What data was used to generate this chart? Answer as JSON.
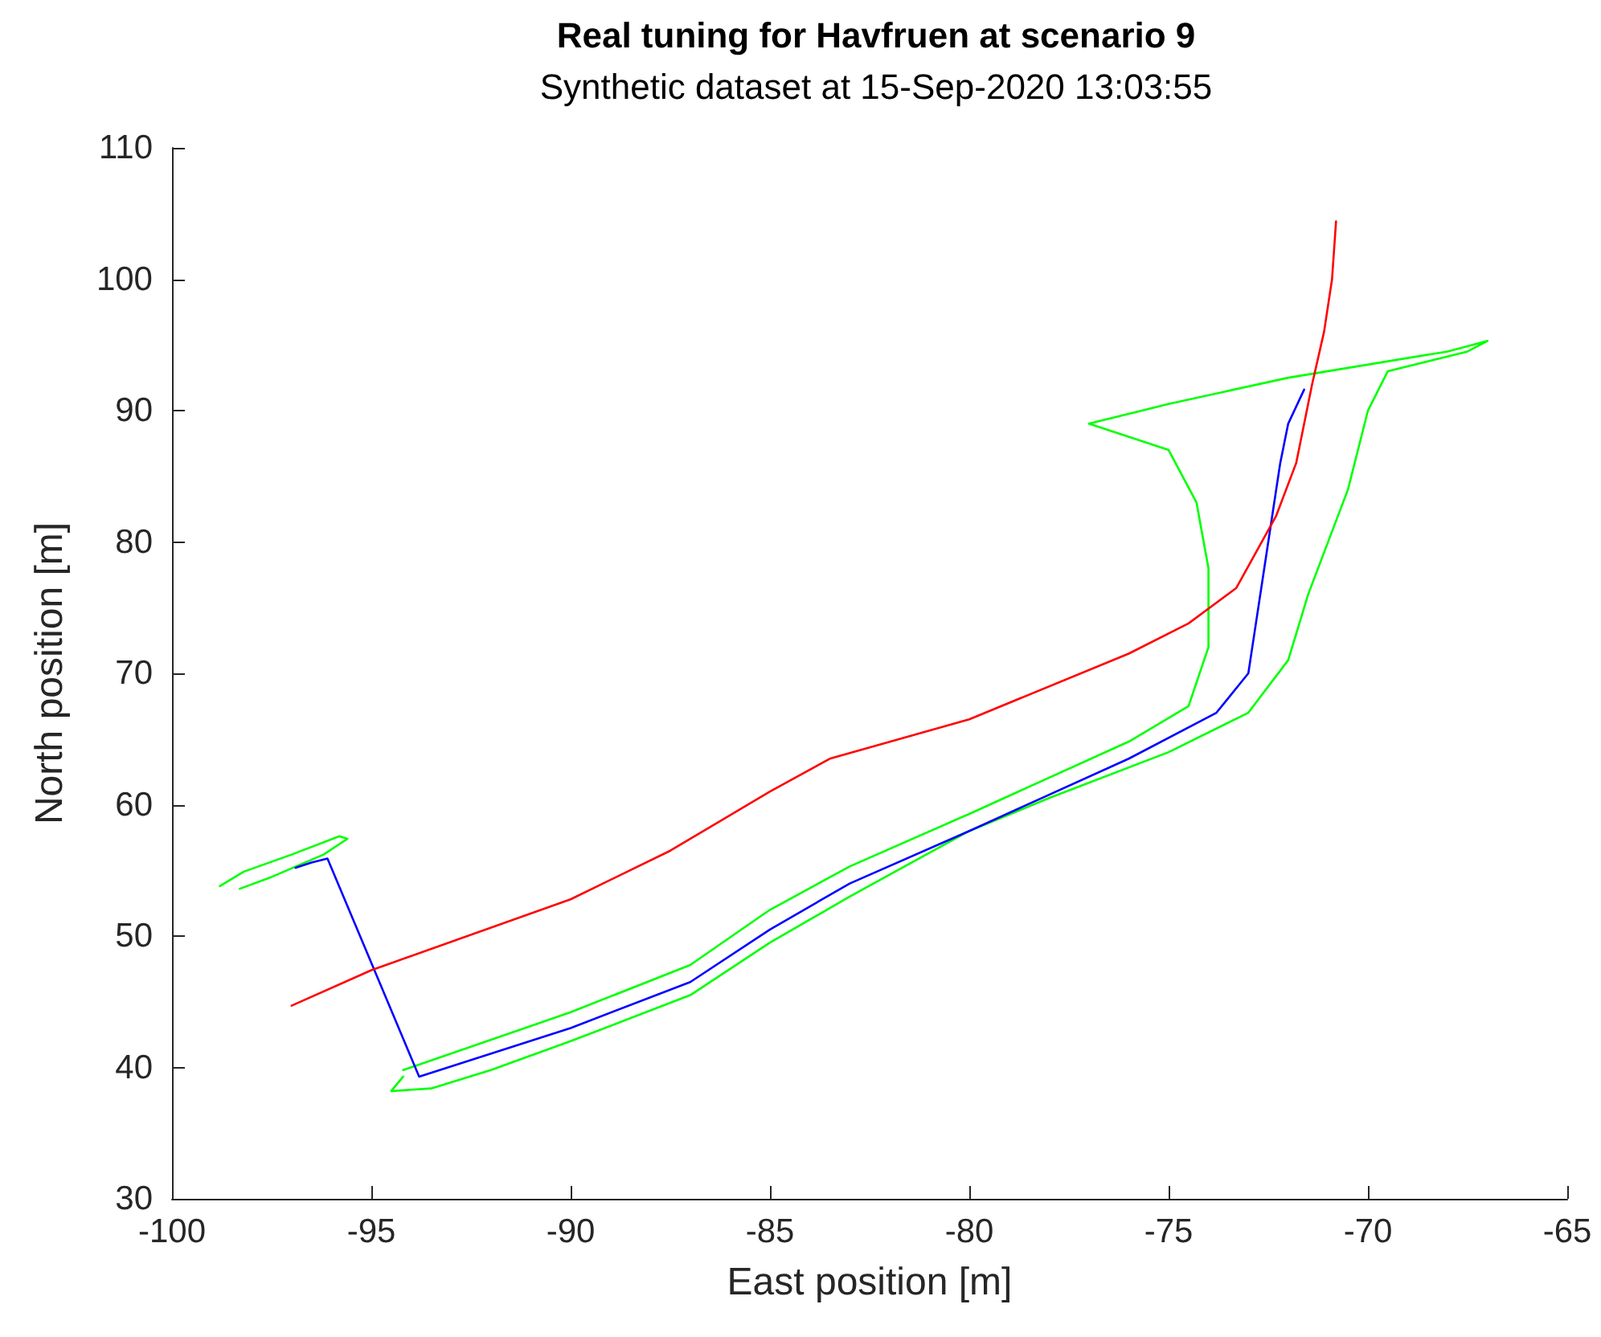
{
  "chart_data": {
    "type": "line",
    "title": "Real tuning for Havfruen at scenario 9",
    "subtitle": "Synthetic dataset at 15-Sep-2020 13:03:55",
    "xlabel": "East position [m]",
    "ylabel": "North position [m]",
    "xlim": [
      -100,
      -65
    ],
    "xticks": [
      -100,
      -95,
      -90,
      -85,
      -80,
      -75,
      -70,
      -65
    ],
    "ylim": [
      30,
      110
    ],
    "yticks": [
      30,
      40,
      50,
      60,
      70,
      80,
      90,
      100,
      110
    ],
    "grid": false,
    "marker": "none",
    "line_style": "solid",
    "series": [
      {
        "color": "#00ff00",
        "x": [
          -98.8,
          -98.2,
          -97,
          -95.8,
          -95.6,
          -96.2,
          -97.5,
          -98.3
        ],
        "values": [
          53.8,
          54.9,
          56.2,
          57.6,
          57.4,
          56.2,
          54.5,
          53.6
        ]
      },
      {
        "color": "#00ff00",
        "x": [
          -94.2,
          -90,
          -87,
          -85,
          -83,
          -80,
          -76,
          -74.5,
          -74,
          -74,
          -74.3,
          -75,
          -77,
          -75,
          -72,
          -68,
          -67,
          -67.5,
          -69.5,
          -70,
          -70.5,
          -71.5,
          -72,
          -73,
          -75,
          -78,
          -80,
          -83,
          -85,
          -87,
          -90,
          -92,
          -93.5,
          -94.5,
          -94.2
        ],
        "values": [
          39.8,
          44.2,
          47.8,
          52,
          55.3,
          59.3,
          64.8,
          67.5,
          72,
          78,
          83,
          87,
          89,
          90.5,
          92.5,
          94.5,
          95.3,
          94.5,
          93,
          90,
          84,
          76,
          71,
          67,
          64,
          60.5,
          58,
          53,
          49.5,
          45.5,
          42,
          39.8,
          38.4,
          38.2,
          39.3
        ]
      },
      {
        "color": "#0000ff",
        "x": [
          -96.9,
          -96.5,
          -96.1,
          -93.8,
          -90,
          -87,
          -85,
          -83,
          -80,
          -76,
          -73.8,
          -73,
          -72.8,
          -72.6,
          -72.4,
          -72.2,
          -72,
          -71.6
        ],
        "values": [
          55.2,
          55.6,
          55.9,
          39.3,
          43,
          46.5,
          50.5,
          54,
          58,
          63.5,
          67,
          70,
          74,
          78,
          82,
          86,
          89,
          91.6
        ]
      },
      {
        "color": "#ff0000",
        "x": [
          -97,
          -95,
          -90,
          -87.5,
          -85,
          -83.5,
          -80,
          -76,
          -74.5,
          -73.3,
          -72.3,
          -71.8,
          -71.4,
          -71.1,
          -70.9,
          -70.8
        ],
        "values": [
          44.7,
          47.4,
          52.8,
          56.5,
          61,
          63.5,
          66.5,
          71.5,
          73.8,
          76.5,
          82,
          86,
          92,
          96,
          100,
          104.4
        ]
      }
    ]
  }
}
